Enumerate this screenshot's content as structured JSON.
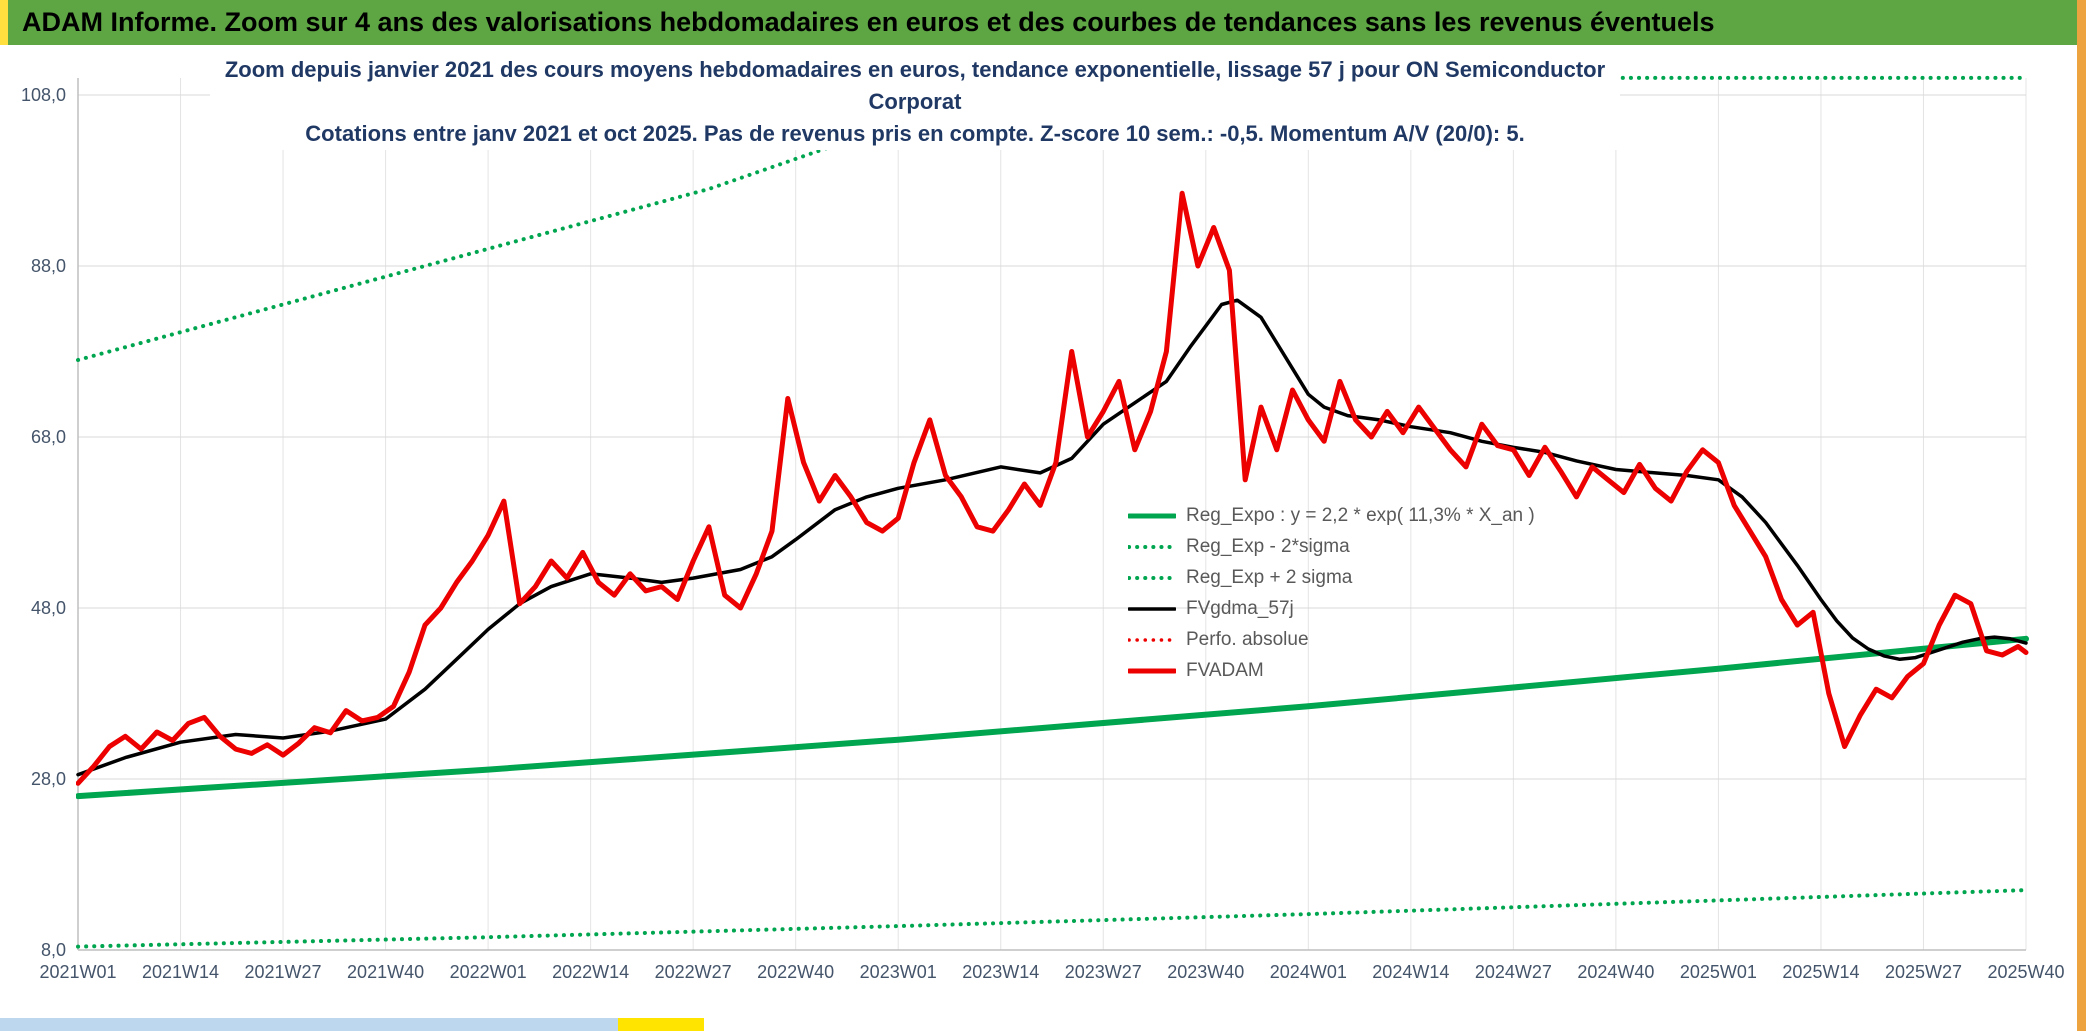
{
  "header": {
    "title": "ADAM Informe. Zoom sur 4 ans des valorisations hebdomadaires en euros et des courbes de tendances sans les revenus éventuels"
  },
  "colors": {
    "topbar_green": "#5EA544",
    "edge_yellow": "#FFDF3F",
    "edge_orange": "#EDA33F",
    "bottom_blue": "#BDD7EE",
    "series_green": "#00A550",
    "series_red": "#ED0000",
    "series_black": "#000000",
    "gridline": "#D9D9D9"
  },
  "chart_data": {
    "type": "line",
    "title_line1": "Zoom depuis janvier 2021 des cours moyens hebdomadaires en euros, tendance exponentielle, lissage 57 j pour ON Semiconductor Corporat",
    "title_line2": "Cotations entre janv 2021 et oct 2025. Pas de revenus pris en compte. Z-score 10 sem.: -0,5. Momentum A/V (20/0): 5.",
    "xlabel": "",
    "ylabel": "",
    "ylim": [
      8,
      110
    ],
    "grid": true,
    "legend_position": "bottom-right-inside",
    "weeks_total": 247,
    "x_tick_step_weeks": 13,
    "x_tick_labels": [
      "2021W01",
      "2021W14",
      "2021W27",
      "2021W40",
      "2022W01",
      "2022W14",
      "2022W27",
      "2022W40",
      "2023W01",
      "2023W14",
      "2023W27",
      "2023W40",
      "2024W01",
      "2024W14",
      "2024W27",
      "2024W40",
      "2025W01",
      "2025W14",
      "2025W27",
      "2025W40"
    ],
    "y_ticks": [
      {
        "value": 108,
        "label": "108,0"
      },
      {
        "value": 88,
        "label": "88,0"
      },
      {
        "value": 68,
        "label": "68,0"
      },
      {
        "value": 48,
        "label": "48,0"
      },
      {
        "value": 28,
        "label": "28,0"
      },
      {
        "value": 8,
        "label": "8,0"
      }
    ],
    "series": [
      {
        "name": "Reg_Expo",
        "legend": "Reg_Expo : y = 2,2 * exp( 11,3% * X_an )",
        "color": "#00A550",
        "style": "solid",
        "width": 6,
        "points": [
          [
            0,
            26.0
          ],
          [
            52,
            29.1
          ],
          [
            104,
            32.6
          ],
          [
            156,
            36.5
          ],
          [
            208,
            40.9
          ],
          [
            247,
            44.4
          ]
        ]
      },
      {
        "name": "Reg_Exp_minus_2sigma",
        "legend": "Reg_Exp - 2*sigma",
        "color": "#00A550",
        "style": "dotted",
        "width": 4,
        "points": [
          [
            0,
            8.4
          ],
          [
            52,
            9.5
          ],
          [
            104,
            10.8
          ],
          [
            156,
            12.2
          ],
          [
            208,
            13.8
          ],
          [
            247,
            15.0
          ]
        ]
      },
      {
        "name": "Reg_Exp_plus_2sigma",
        "legend": "Reg_Exp + 2 sigma",
        "color": "#00A550",
        "style": "dotted",
        "width": 4,
        "points": [
          [
            0,
            77.0
          ],
          [
            40,
            87.0
          ],
          [
            80,
            97.0
          ],
          [
            105,
            105.0
          ],
          [
            118,
            110.0
          ],
          [
            247,
            110.0
          ]
        ]
      },
      {
        "name": "FVgdma_57j",
        "legend": "FVgdma_57j",
        "color": "#000000",
        "style": "solid",
        "width": 3.5,
        "points": [
          [
            0,
            28.5
          ],
          [
            6,
            30.5
          ],
          [
            13,
            32.3
          ],
          [
            20,
            33.2
          ],
          [
            26,
            32.8
          ],
          [
            32,
            33.6
          ],
          [
            39,
            35.0
          ],
          [
            44,
            38.5
          ],
          [
            48,
            42.0
          ],
          [
            52,
            45.5
          ],
          [
            56,
            48.5
          ],
          [
            60,
            50.5
          ],
          [
            65,
            52.0
          ],
          [
            70,
            51.5
          ],
          [
            74,
            51.0
          ],
          [
            78,
            51.5
          ],
          [
            84,
            52.5
          ],
          [
            88,
            54.0
          ],
          [
            91,
            56.0
          ],
          [
            96,
            59.5
          ],
          [
            100,
            61.0
          ],
          [
            104,
            62.0
          ],
          [
            110,
            63.0
          ],
          [
            117,
            64.5
          ],
          [
            122,
            63.8
          ],
          [
            126,
            65.5
          ],
          [
            130,
            69.5
          ],
          [
            134,
            72.0
          ],
          [
            138,
            74.5
          ],
          [
            141,
            78.5
          ],
          [
            143,
            81.0
          ],
          [
            145,
            83.5
          ],
          [
            147,
            84.0
          ],
          [
            150,
            82.0
          ],
          [
            152,
            79.0
          ],
          [
            154,
            76.0
          ],
          [
            156,
            73.0
          ],
          [
            158,
            71.5
          ],
          [
            161,
            70.5
          ],
          [
            165,
            70.0
          ],
          [
            169,
            69.2
          ],
          [
            174,
            68.5
          ],
          [
            178,
            67.5
          ],
          [
            182,
            66.8
          ],
          [
            186,
            66.2
          ],
          [
            190,
            65.2
          ],
          [
            195,
            64.2
          ],
          [
            200,
            63.8
          ],
          [
            204,
            63.5
          ],
          [
            208,
            63.0
          ],
          [
            211,
            61.0
          ],
          [
            214,
            58.0
          ],
          [
            216,
            55.5
          ],
          [
            218,
            53.0
          ],
          [
            221,
            49.0
          ],
          [
            223,
            46.5
          ],
          [
            225,
            44.5
          ],
          [
            227,
            43.2
          ],
          [
            229,
            42.4
          ],
          [
            231,
            42.0
          ],
          [
            233,
            42.2
          ],
          [
            235,
            42.8
          ],
          [
            237,
            43.4
          ],
          [
            239,
            44.0
          ],
          [
            241,
            44.4
          ],
          [
            243,
            44.6
          ],
          [
            245,
            44.4
          ],
          [
            247,
            43.9
          ]
        ]
      },
      {
        "name": "Perfo_absolue",
        "legend": "Perfo. absolue",
        "color": "#ED0000",
        "style": "dotted",
        "width": 3.5,
        "points": []
      },
      {
        "name": "FVADAM",
        "legend": "FVADAM",
        "color": "#ED0000",
        "style": "solid",
        "width": 5,
        "points": [
          [
            0,
            27.5
          ],
          [
            2,
            29.5
          ],
          [
            4,
            31.8
          ],
          [
            6,
            33.0
          ],
          [
            8,
            31.5
          ],
          [
            10,
            33.5
          ],
          [
            12,
            32.5
          ],
          [
            14,
            34.5
          ],
          [
            16,
            35.2
          ],
          [
            18,
            33.0
          ],
          [
            20,
            31.5
          ],
          [
            22,
            31.0
          ],
          [
            24,
            32.0
          ],
          [
            26,
            30.8
          ],
          [
            28,
            32.2
          ],
          [
            30,
            34.0
          ],
          [
            32,
            33.4
          ],
          [
            34,
            36.0
          ],
          [
            36,
            34.8
          ],
          [
            38,
            35.2
          ],
          [
            40,
            36.5
          ],
          [
            42,
            40.5
          ],
          [
            44,
            46.0
          ],
          [
            46,
            48.0
          ],
          [
            48,
            51.0
          ],
          [
            50,
            53.5
          ],
          [
            52,
            56.5
          ],
          [
            54,
            60.5
          ],
          [
            56,
            48.5
          ],
          [
            58,
            50.5
          ],
          [
            60,
            53.5
          ],
          [
            62,
            51.5
          ],
          [
            64,
            54.5
          ],
          [
            66,
            51.0
          ],
          [
            68,
            49.5
          ],
          [
            70,
            52.0
          ],
          [
            72,
            50.0
          ],
          [
            74,
            50.5
          ],
          [
            76,
            49.0
          ],
          [
            78,
            53.5
          ],
          [
            80,
            57.5
          ],
          [
            82,
            49.5
          ],
          [
            84,
            48.0
          ],
          [
            86,
            52.0
          ],
          [
            88,
            57.0
          ],
          [
            90,
            72.5
          ],
          [
            92,
            65.0
          ],
          [
            94,
            60.5
          ],
          [
            96,
            63.5
          ],
          [
            98,
            61.0
          ],
          [
            100,
            58.0
          ],
          [
            102,
            57.0
          ],
          [
            104,
            58.5
          ],
          [
            106,
            65.0
          ],
          [
            108,
            70.0
          ],
          [
            110,
            63.5
          ],
          [
            112,
            61.0
          ],
          [
            114,
            57.5
          ],
          [
            116,
            57.0
          ],
          [
            118,
            59.5
          ],
          [
            120,
            62.5
          ],
          [
            122,
            60.0
          ],
          [
            124,
            65.0
          ],
          [
            126,
            78.0
          ],
          [
            128,
            68.0
          ],
          [
            130,
            71.0
          ],
          [
            132,
            74.5
          ],
          [
            134,
            66.5
          ],
          [
            136,
            71.0
          ],
          [
            138,
            78.0
          ],
          [
            140,
            96.5
          ],
          [
            142,
            88.0
          ],
          [
            144,
            92.5
          ],
          [
            146,
            87.5
          ],
          [
            148,
            63.0
          ],
          [
            150,
            71.5
          ],
          [
            152,
            66.5
          ],
          [
            154,
            73.5
          ],
          [
            156,
            70.0
          ],
          [
            158,
            67.5
          ],
          [
            160,
            74.5
          ],
          [
            162,
            70.0
          ],
          [
            164,
            68.0
          ],
          [
            166,
            71.0
          ],
          [
            168,
            68.5
          ],
          [
            170,
            71.5
          ],
          [
            172,
            69.0
          ],
          [
            174,
            66.5
          ],
          [
            176,
            64.5
          ],
          [
            178,
            69.5
          ],
          [
            180,
            67.0
          ],
          [
            182,
            66.5
          ],
          [
            184,
            63.5
          ],
          [
            186,
            66.8
          ],
          [
            188,
            64.0
          ],
          [
            190,
            61.0
          ],
          [
            192,
            64.5
          ],
          [
            194,
            63.0
          ],
          [
            196,
            61.5
          ],
          [
            198,
            64.8
          ],
          [
            200,
            62.0
          ],
          [
            202,
            60.5
          ],
          [
            204,
            64.0
          ],
          [
            206,
            66.5
          ],
          [
            208,
            65.0
          ],
          [
            210,
            60.0
          ],
          [
            212,
            57.0
          ],
          [
            214,
            54.0
          ],
          [
            216,
            49.0
          ],
          [
            218,
            46.0
          ],
          [
            220,
            47.5
          ],
          [
            222,
            38.0
          ],
          [
            224,
            31.8
          ],
          [
            226,
            35.5
          ],
          [
            228,
            38.5
          ],
          [
            230,
            37.5
          ],
          [
            232,
            40.0
          ],
          [
            234,
            41.5
          ],
          [
            236,
            46.0
          ],
          [
            238,
            49.5
          ],
          [
            240,
            48.5
          ],
          [
            242,
            43.0
          ],
          [
            244,
            42.5
          ],
          [
            246,
            43.5
          ],
          [
            247,
            42.8
          ]
        ]
      }
    ]
  }
}
